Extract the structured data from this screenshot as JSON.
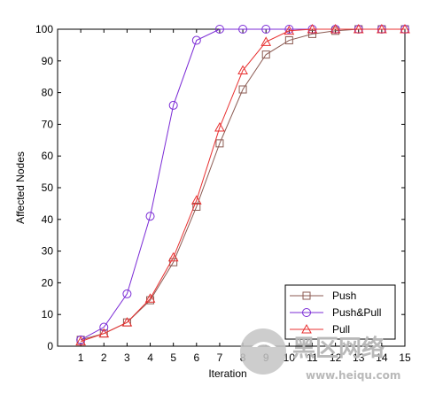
{
  "chart_data": {
    "type": "line",
    "title": "",
    "xlabel": "Iteration",
    "ylabel": "Affected Nodes",
    "x": [
      1,
      2,
      3,
      4,
      5,
      6,
      7,
      8,
      9,
      10,
      11,
      12,
      13,
      14,
      15
    ],
    "xlim": [
      0,
      15
    ],
    "ylim": [
      0,
      100
    ],
    "xticks": [
      "1",
      "2",
      "3",
      "4",
      "5",
      "6",
      "7",
      "8",
      "9",
      "10",
      "11",
      "12",
      "13",
      "14",
      "15"
    ],
    "yticks": [
      "0",
      "10",
      "20",
      "30",
      "40",
      "50",
      "60",
      "70",
      "80",
      "90",
      "100"
    ],
    "grid": false,
    "legend_position": "bottom-right",
    "series": [
      {
        "name": "Push",
        "marker": "square",
        "color": "#8B5A52",
        "values": [
          2,
          4,
          7.5,
          14.5,
          26.5,
          44,
          64,
          81,
          92,
          96.5,
          98.5,
          99.5,
          100,
          100,
          100
        ]
      },
      {
        "name": "Push&Pull",
        "marker": "circle",
        "color": "#7B2BD6",
        "values": [
          2,
          6,
          16.5,
          41,
          76,
          96.5,
          100,
          100,
          100,
          100,
          100,
          100,
          100,
          100,
          100
        ]
      },
      {
        "name": "Pull",
        "marker": "triangle",
        "color": "#E83030",
        "values": [
          1.5,
          4,
          7.5,
          15,
          28,
          46,
          69,
          87,
          96,
          99.5,
          100,
          100,
          100,
          100,
          100
        ]
      }
    ]
  },
  "watermark": {
    "title": "黑区网络",
    "url": "www.heiqu.com"
  }
}
